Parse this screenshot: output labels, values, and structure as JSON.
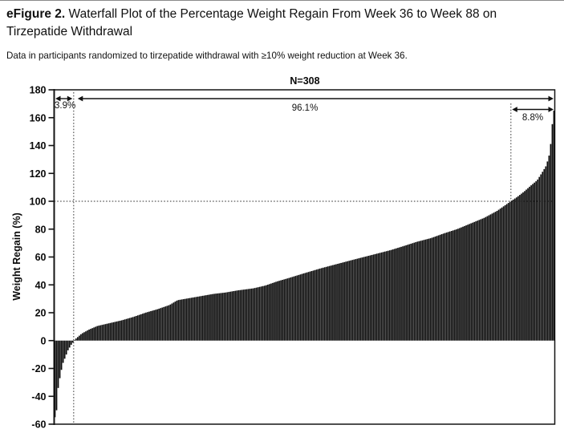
{
  "figure": {
    "title_prefix": "eFigure 2.",
    "title_text": " Waterfall Plot of the Percentage Weight Regain From Week 36 to Week 88 on Tirzepatide Withdrawal",
    "caption": "Data in participants randomized to tirzepatide withdrawal with ≥10% weight reduction at Week 36."
  },
  "chart_data": {
    "type": "bar",
    "variant": "waterfall",
    "title": "N=308",
    "ylabel": "Weight Regain (%)",
    "ylim": [
      -60,
      180
    ],
    "yticks": [
      180,
      160,
      140,
      120,
      100,
      80,
      60,
      40,
      20,
      0,
      -20,
      -40,
      -60
    ],
    "grid": false,
    "legend": "none",
    "bar_color": "#0b0b0b",
    "n_bars": 308,
    "reference_value": 100,
    "annotations": {
      "negative_share": "3.9%",
      "positive_share": "96.1%",
      "above_reference_share": "8.8%"
    },
    "bar_values_negative": [
      -55,
      -50,
      -34,
      -27,
      -21,
      -16,
      -13,
      -10,
      -7,
      -5,
      -3,
      -1.5
    ],
    "positive_envelope": [
      [
        0.0,
        0.5
      ],
      [
        0.015,
        5
      ],
      [
        0.031,
        8
      ],
      [
        0.048,
        10.5
      ],
      [
        0.073,
        12.5
      ],
      [
        0.098,
        14.5
      ],
      [
        0.123,
        17
      ],
      [
        0.148,
        20
      ],
      [
        0.173,
        22.5
      ],
      [
        0.198,
        25.5
      ],
      [
        0.215,
        29
      ],
      [
        0.24,
        30.5
      ],
      [
        0.265,
        32
      ],
      [
        0.29,
        33.5
      ],
      [
        0.315,
        34.5
      ],
      [
        0.34,
        36
      ],
      [
        0.373,
        37.5
      ],
      [
        0.398,
        39.5
      ],
      [
        0.423,
        42.5
      ],
      [
        0.448,
        45
      ],
      [
        0.476,
        48
      ],
      [
        0.515,
        52
      ],
      [
        0.548,
        55
      ],
      [
        0.581,
        58
      ],
      [
        0.615,
        61
      ],
      [
        0.66,
        65
      ],
      [
        0.688,
        68
      ],
      [
        0.715,
        71
      ],
      [
        0.743,
        73.5
      ],
      [
        0.771,
        77
      ],
      [
        0.798,
        80
      ],
      [
        0.826,
        84
      ],
      [
        0.854,
        88
      ],
      [
        0.881,
        93
      ],
      [
        0.91,
        100
      ],
      [
        0.923,
        103
      ],
      [
        0.938,
        107
      ],
      [
        0.951,
        111
      ],
      [
        0.965,
        115
      ],
      [
        0.976,
        121
      ],
      [
        0.983,
        125
      ],
      [
        0.986,
        128
      ],
      [
        0.99,
        133
      ],
      [
        0.993,
        140
      ],
      [
        0.995,
        150
      ],
      [
        0.998,
        160
      ],
      [
        1.0,
        165
      ]
    ]
  }
}
